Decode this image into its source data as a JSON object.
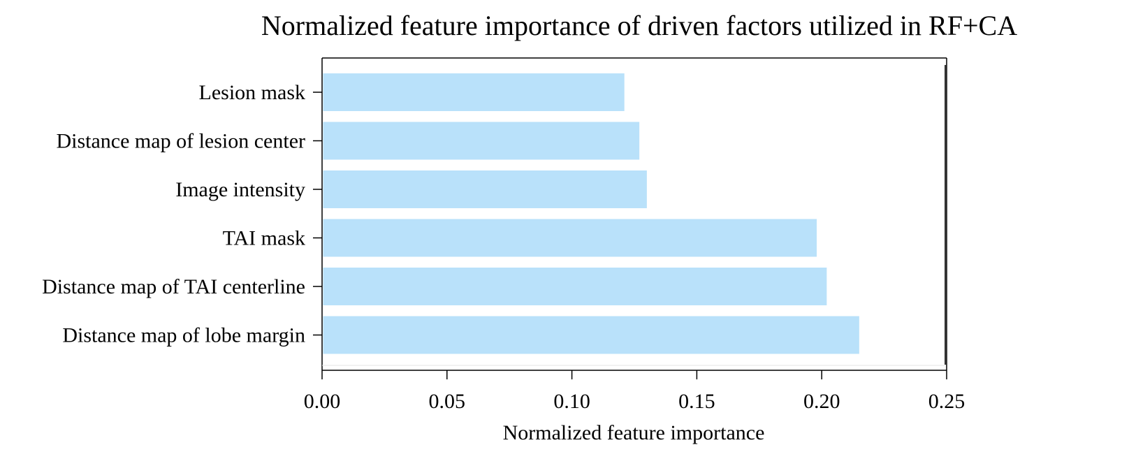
{
  "chart_data": {
    "type": "bar",
    "orientation": "horizontal",
    "title": "Normalized feature importance of driven factors utilized in RF+CA",
    "xlabel": "Normalized feature importance",
    "ylabel": "",
    "categories": [
      "Lesion mask",
      "Distance map of lesion center",
      "Image intensity",
      "TAI mask",
      "Distance map of TAI centerline",
      "Distance map of lobe margin"
    ],
    "values": [
      0.121,
      0.127,
      0.13,
      0.198,
      0.202,
      0.215
    ],
    "xlim": [
      0.0,
      0.25
    ],
    "xticks": [
      0.0,
      0.05,
      0.1,
      0.15,
      0.2,
      0.25
    ],
    "xtick_labels": [
      "0.00",
      "0.05",
      "0.10",
      "0.15",
      "0.20",
      "0.25"
    ],
    "grid": false,
    "bar_color": "#b9e1fa"
  }
}
